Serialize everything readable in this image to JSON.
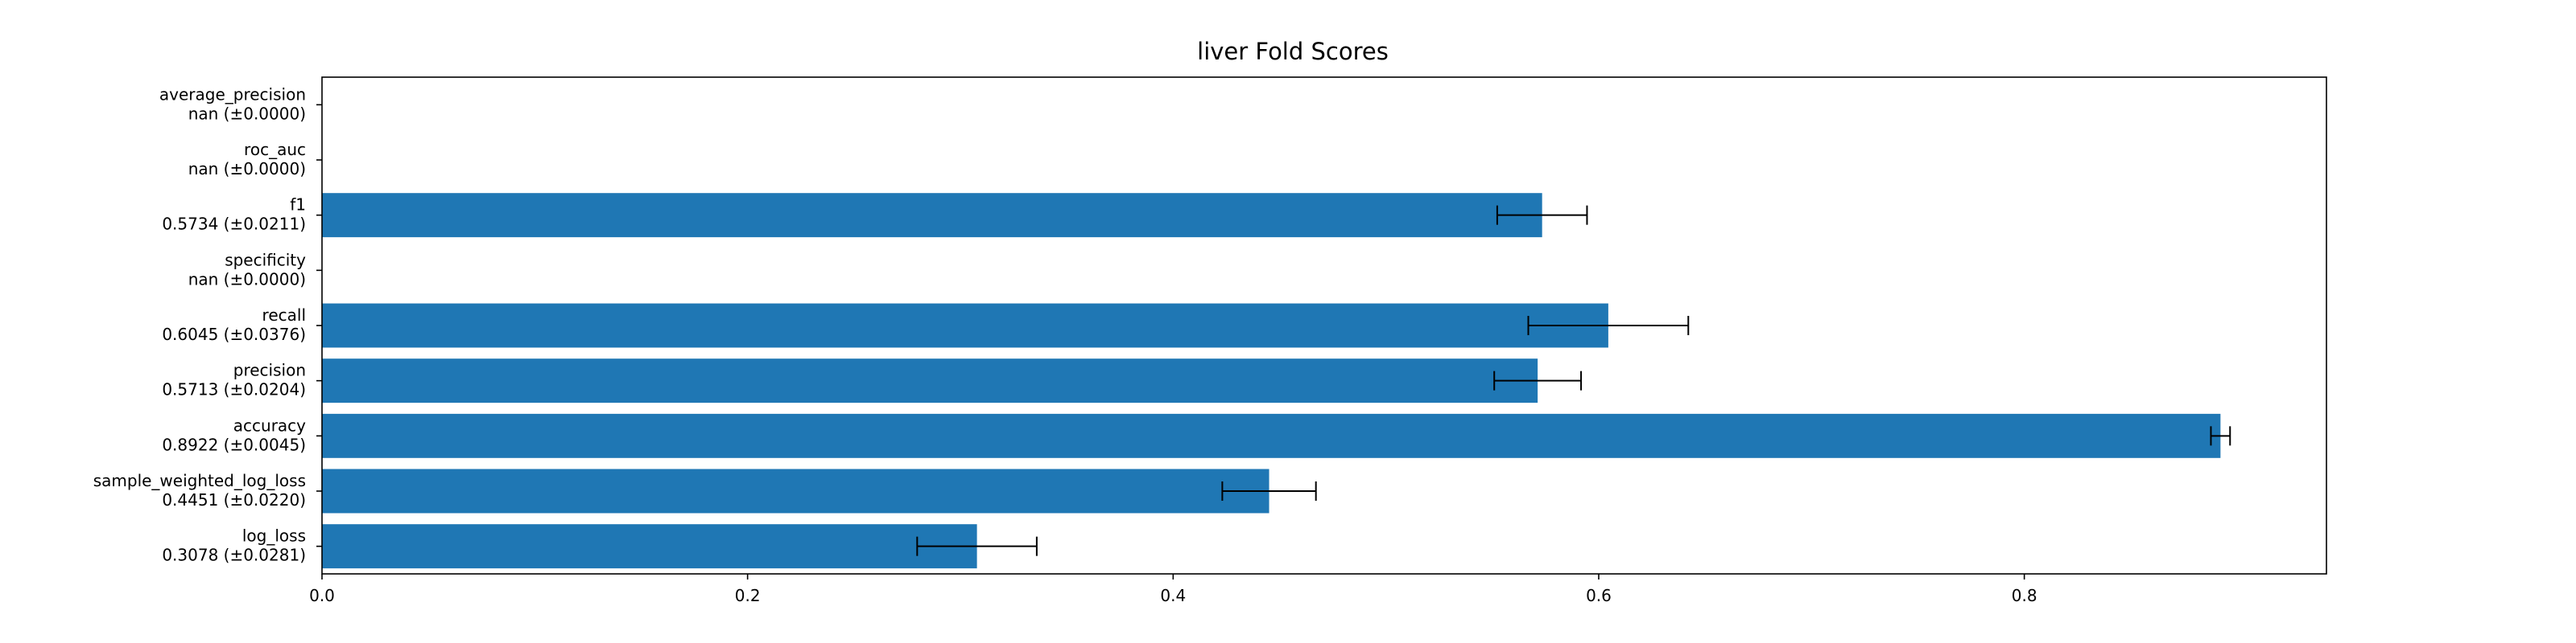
{
  "chart_data": {
    "type": "bar",
    "orientation": "horizontal",
    "title": "liver Fold Scores",
    "xlabel": "",
    "ylabel": "",
    "xlim": [
      0,
      0.942
    ],
    "grid": false,
    "legend": "none",
    "bar_color": "#1f77b4",
    "error_bar_color": "#000000",
    "categories": [
      {
        "name": "average_precision",
        "score_label": "nan (±0.0000)",
        "value": null,
        "error": 0.0
      },
      {
        "name": "roc_auc",
        "score_label": "nan (±0.0000)",
        "value": null,
        "error": 0.0
      },
      {
        "name": "f1",
        "score_label": "0.5734 (±0.0211)",
        "value": 0.5734,
        "error": 0.0211
      },
      {
        "name": "specificity",
        "score_label": "nan (±0.0000)",
        "value": null,
        "error": 0.0
      },
      {
        "name": "recall",
        "score_label": "0.6045 (±0.0376)",
        "value": 0.6045,
        "error": 0.0376
      },
      {
        "name": "precision",
        "score_label": "0.5713 (±0.0204)",
        "value": 0.5713,
        "error": 0.0204
      },
      {
        "name": "accuracy",
        "score_label": "0.8922 (±0.0045)",
        "value": 0.8922,
        "error": 0.0045
      },
      {
        "name": "sample_weighted_log_loss",
        "score_label": "0.4451 (±0.0220)",
        "value": 0.4451,
        "error": 0.022
      },
      {
        "name": "log_loss",
        "score_label": "0.3078 (±0.0281)",
        "value": 0.3078,
        "error": 0.0281
      }
    ],
    "x_ticks": [
      {
        "value": 0.0,
        "label": "0.0"
      },
      {
        "value": 0.2,
        "label": "0.2"
      },
      {
        "value": 0.4,
        "label": "0.4"
      },
      {
        "value": 0.6,
        "label": "0.6"
      },
      {
        "value": 0.8,
        "label": "0.8"
      }
    ]
  }
}
